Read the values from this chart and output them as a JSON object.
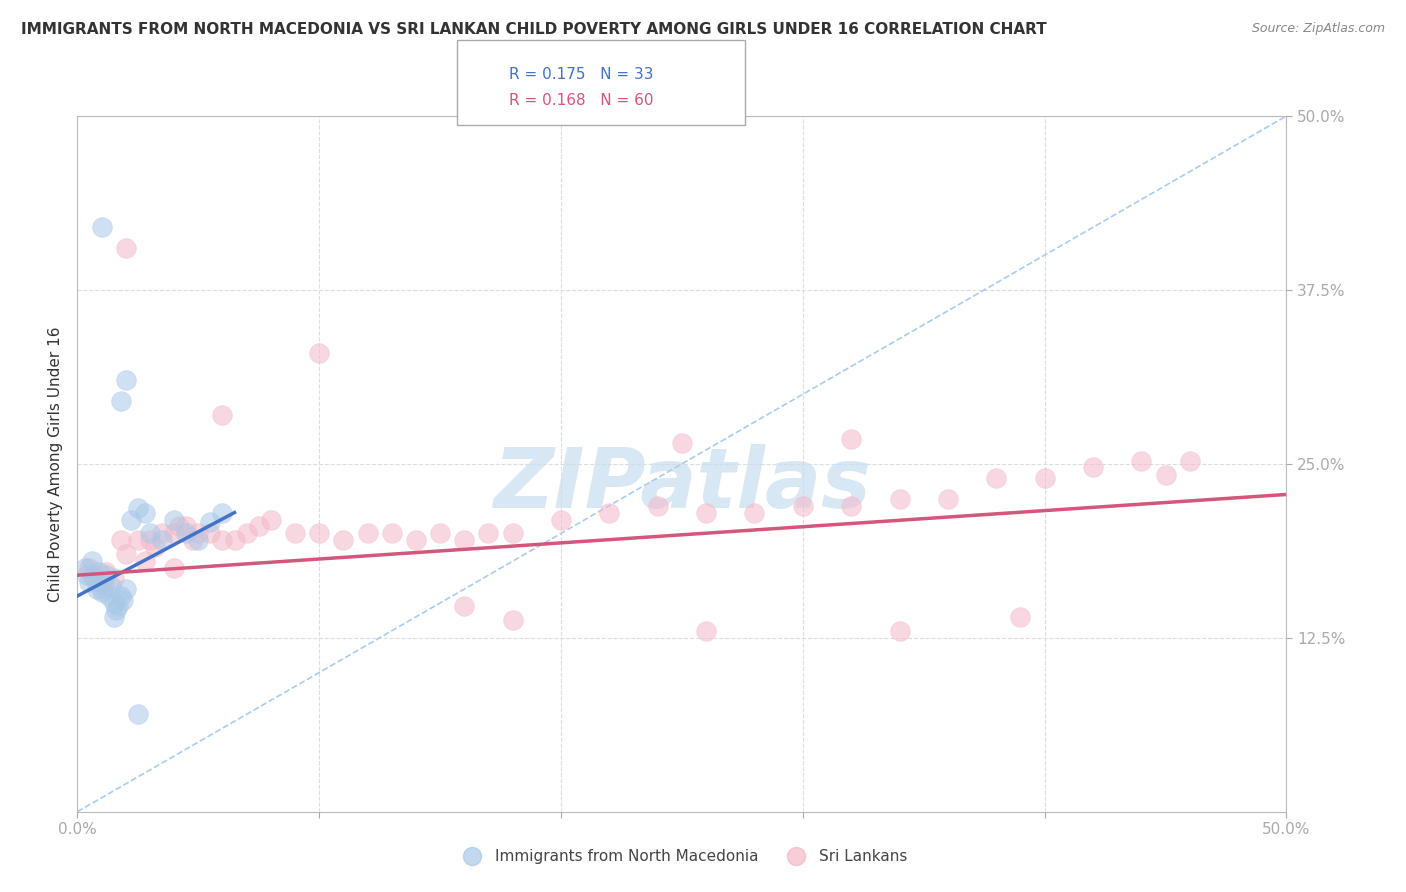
{
  "title": "IMMIGRANTS FROM NORTH MACEDONIA VS SRI LANKAN CHILD POVERTY AMONG GIRLS UNDER 16 CORRELATION CHART",
  "source": "Source: ZipAtlas.com",
  "ylabel": "Child Poverty Among Girls Under 16",
  "xlim": [
    0,
    0.5
  ],
  "ylim": [
    0,
    0.5
  ],
  "ytick_positions": [
    0.125,
    0.25,
    0.375,
    0.5
  ],
  "ytick_labels": [
    "12.5%",
    "25.0%",
    "37.5%",
    "50.0%"
  ],
  "xtick_positions": [
    0.0,
    0.1,
    0.2,
    0.3,
    0.4,
    0.5
  ],
  "xtick_labels": [
    "0.0%",
    "",
    "",
    "",
    "",
    "50.0%"
  ],
  "legend_top": [
    {
      "label": "R = 0.175   N = 33",
      "color": "#4472c4"
    },
    {
      "label": "R = 0.168   N = 60",
      "color": "#d4567a"
    }
  ],
  "legend_bottom": [
    "Immigrants from North Macedonia",
    "Sri Lankans"
  ],
  "blue_scatter_x": [
    0.003,
    0.004,
    0.005,
    0.006,
    0.007,
    0.008,
    0.009,
    0.01,
    0.011,
    0.012,
    0.013,
    0.014,
    0.015,
    0.016,
    0.017,
    0.018,
    0.019,
    0.02,
    0.022,
    0.025,
    0.028,
    0.03,
    0.035,
    0.04,
    0.045,
    0.05,
    0.055,
    0.06,
    0.018,
    0.02,
    0.01,
    0.015,
    0.025
  ],
  "blue_scatter_y": [
    0.175,
    0.17,
    0.165,
    0.18,
    0.168,
    0.16,
    0.172,
    0.158,
    0.163,
    0.17,
    0.155,
    0.162,
    0.15,
    0.145,
    0.148,
    0.155,
    0.152,
    0.16,
    0.21,
    0.218,
    0.215,
    0.2,
    0.195,
    0.21,
    0.2,
    0.195,
    0.208,
    0.215,
    0.295,
    0.31,
    0.42,
    0.14,
    0.07
  ],
  "pink_scatter_x": [
    0.005,
    0.006,
    0.008,
    0.01,
    0.012,
    0.015,
    0.018,
    0.02,
    0.025,
    0.028,
    0.03,
    0.032,
    0.035,
    0.04,
    0.042,
    0.045,
    0.048,
    0.05,
    0.055,
    0.06,
    0.065,
    0.07,
    0.075,
    0.08,
    0.09,
    0.1,
    0.11,
    0.12,
    0.13,
    0.14,
    0.15,
    0.16,
    0.17,
    0.18,
    0.2,
    0.22,
    0.24,
    0.26,
    0.28,
    0.3,
    0.32,
    0.34,
    0.36,
    0.38,
    0.4,
    0.42,
    0.44,
    0.46,
    0.25,
    0.32,
    0.1,
    0.06,
    0.04,
    0.02,
    0.16,
    0.18,
    0.26,
    0.34,
    0.39,
    0.45
  ],
  "pink_scatter_y": [
    0.175,
    0.17,
    0.165,
    0.16,
    0.172,
    0.168,
    0.195,
    0.185,
    0.195,
    0.18,
    0.195,
    0.19,
    0.2,
    0.2,
    0.205,
    0.205,
    0.195,
    0.2,
    0.2,
    0.195,
    0.195,
    0.2,
    0.205,
    0.21,
    0.2,
    0.2,
    0.195,
    0.2,
    0.2,
    0.195,
    0.2,
    0.195,
    0.2,
    0.2,
    0.21,
    0.215,
    0.22,
    0.215,
    0.215,
    0.22,
    0.22,
    0.225,
    0.225,
    0.24,
    0.24,
    0.248,
    0.252,
    0.252,
    0.265,
    0.268,
    0.33,
    0.285,
    0.175,
    0.405,
    0.148,
    0.138,
    0.13,
    0.13,
    0.14,
    0.242
  ],
  "blue_line_x": [
    0.0,
    0.065
  ],
  "blue_line_y": [
    0.155,
    0.215
  ],
  "pink_line_x": [
    0.0,
    0.5
  ],
  "pink_line_y": [
    0.17,
    0.228
  ],
  "ref_line_x": [
    0.0,
    0.5
  ],
  "ref_line_y": [
    0.0,
    0.5
  ],
  "blue_marker_color": "#a8c8e8",
  "pink_marker_color": "#f4b8c8",
  "blue_line_color": "#4472c4",
  "pink_line_color": "#d4567a",
  "ref_line_color": "#aaccee",
  "watermark_text": "ZIPatlas",
  "watermark_color": "#c8ddf0",
  "background_color": "#ffffff",
  "grid_color": "#dddddd",
  "grid_style": "--",
  "title_fontsize": 11,
  "tick_label_fontsize": 11,
  "ylabel_fontsize": 11,
  "legend_fontsize": 11,
  "watermark_fontsize": 60
}
